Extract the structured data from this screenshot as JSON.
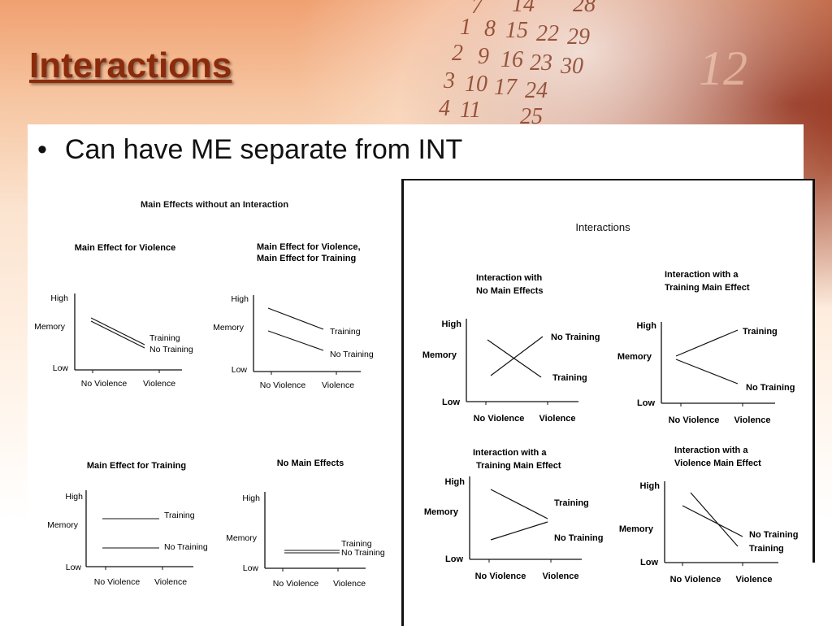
{
  "slide": {
    "title": "Interactions",
    "bullet_symbol": "•",
    "bullet_text": "Can have ME separate from INT"
  },
  "background": {
    "numbers": [
      "7",
      "14",
      "28",
      "1",
      "8",
      "15",
      "22",
      "29",
      "2",
      "9",
      "16",
      "23",
      "30",
      "3",
      "10",
      "17",
      "24",
      "4",
      "11",
      "25",
      "12"
    ]
  },
  "left_figure": {
    "title": "Main Effects without an Interaction",
    "panels": [
      {
        "title_lines": [
          "Main Effect for Violence"
        ],
        "high": "High",
        "low": "Low",
        "ylabel": "Memory",
        "x_labels": [
          "No Violence",
          "Violence"
        ],
        "line_labels": [
          "Training",
          "No Training"
        ]
      },
      {
        "title_lines": [
          "Main Effect for Violence,",
          "Main Effect for Training"
        ],
        "high": "High",
        "low": "Low",
        "ylabel": "Memory",
        "x_labels": [
          "No Violence",
          "Violence"
        ],
        "line_labels": [
          "Training",
          "No Training"
        ]
      },
      {
        "title_lines": [
          "Main Effect for Training"
        ],
        "high": "High",
        "low": "Low",
        "ylabel": "Memory",
        "x_labels": [
          "No Violence",
          "Violence"
        ],
        "line_labels": [
          "Training",
          "No Training"
        ]
      },
      {
        "title_lines": [
          "No Main Effects"
        ],
        "high": "High",
        "low": "Low",
        "ylabel": "Memory",
        "x_labels": [
          "No Violence",
          "Violence"
        ],
        "line_labels": [
          "Training",
          "No Training"
        ]
      }
    ]
  },
  "right_figure": {
    "title": "Interactions",
    "panels": [
      {
        "title_lines": [
          "Interaction with",
          "No Main Effects"
        ],
        "high": "High",
        "low": "Low",
        "ylabel": "Memory",
        "x_labels": [
          "No Violence",
          "Violence"
        ],
        "line_labels": [
          "No Training",
          "Training"
        ]
      },
      {
        "title_lines": [
          "Interaction with a",
          "Training Main Effect"
        ],
        "high": "High",
        "low": "Low",
        "ylabel": "Memory",
        "x_labels": [
          "No Violence",
          "Violence"
        ],
        "line_labels": [
          "Training",
          "No Training"
        ]
      },
      {
        "title_lines": [
          "Interaction with a",
          "Training Main Effect"
        ],
        "high": "High",
        "low": "Low",
        "ylabel": "Memory",
        "x_labels": [
          "No Violence",
          "Violence"
        ],
        "line_labels": [
          "Training",
          "No Training"
        ]
      },
      {
        "title_lines": [
          "Interaction with a",
          "Violence Main Effect"
        ],
        "high": "High",
        "low": "Low",
        "ylabel": "Memory",
        "x_labels": [
          "No Violence",
          "Violence"
        ],
        "line_labels": [
          "No Training",
          "Training"
        ]
      }
    ]
  }
}
